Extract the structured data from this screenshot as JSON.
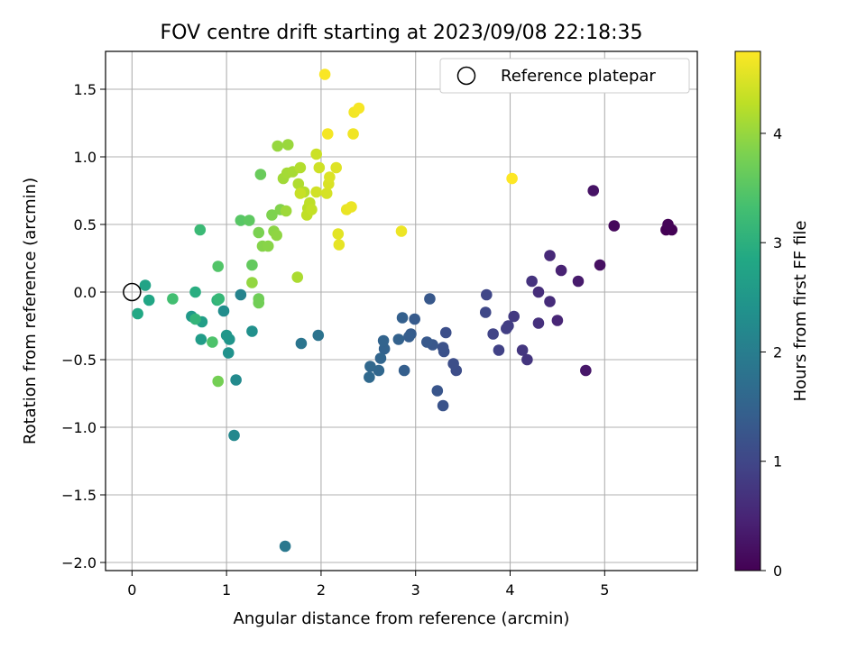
{
  "chart_data": {
    "type": "scatter",
    "title": "FOV centre drift starting at 2023/09/08 22:18:35",
    "xlabel": "Angular distance from reference (arcmin)",
    "ylabel": "Rotation from reference (arcmin)",
    "xlim": [
      -0.28,
      5.98
    ],
    "ylim": [
      -2.06,
      1.78
    ],
    "xticks": [
      "0",
      "1",
      "2",
      "3",
      "4",
      "5"
    ],
    "yticks": [
      "1.5",
      "1.0",
      "0.5",
      "0.0",
      "−0.5",
      "−1.0",
      "−1.5",
      "−2.0"
    ],
    "grid": true,
    "legend": {
      "position": "top-right",
      "label": "Reference platepar"
    },
    "reference_point": {
      "x": 0.0,
      "y": 0.0
    },
    "colorbar": {
      "label": "Hours from first FF file",
      "range": [
        0,
        4.75
      ],
      "ticks": [
        "0",
        "1",
        "2",
        "3",
        "4"
      ],
      "colormap": "viridis"
    },
    "points": [
      {
        "x": 5.65,
        "y": 0.46,
        "c": 0.0
      },
      {
        "x": 5.71,
        "y": 0.46,
        "c": 0.02
      },
      {
        "x": 5.67,
        "y": 0.5,
        "c": 0.04
      },
      {
        "x": 5.1,
        "y": 0.49,
        "c": 0.1
      },
      {
        "x": 4.95,
        "y": 0.2,
        "c": 0.2
      },
      {
        "x": 4.88,
        "y": 0.75,
        "c": 0.25
      },
      {
        "x": 4.8,
        "y": -0.58,
        "c": 0.3
      },
      {
        "x": 4.72,
        "y": 0.08,
        "c": 0.35
      },
      {
        "x": 4.54,
        "y": 0.16,
        "c": 0.45
      },
      {
        "x": 4.5,
        "y": -0.21,
        "c": 0.5
      },
      {
        "x": 4.42,
        "y": 0.27,
        "c": 0.55
      },
      {
        "x": 4.42,
        "y": -0.07,
        "c": 0.6
      },
      {
        "x": 4.3,
        "y": 0.0,
        "c": 0.62
      },
      {
        "x": 4.3,
        "y": -0.23,
        "c": 0.65
      },
      {
        "x": 4.23,
        "y": 0.08,
        "c": 0.7
      },
      {
        "x": 4.18,
        "y": -0.5,
        "c": 0.72
      },
      {
        "x": 4.13,
        "y": -0.43,
        "c": 0.75
      },
      {
        "x": 4.04,
        "y": -0.18,
        "c": 0.8
      },
      {
        "x": 3.98,
        "y": -0.25,
        "c": 0.85
      },
      {
        "x": 3.96,
        "y": -0.27,
        "c": 0.88
      },
      {
        "x": 3.88,
        "y": -0.43,
        "c": 0.92
      },
      {
        "x": 3.82,
        "y": -0.31,
        "c": 0.95
      },
      {
        "x": 3.75,
        "y": -0.02,
        "c": 1.0
      },
      {
        "x": 3.74,
        "y": -0.15,
        "c": 1.02
      },
      {
        "x": 3.43,
        "y": -0.58,
        "c": 1.1
      },
      {
        "x": 3.4,
        "y": -0.53,
        "c": 1.12
      },
      {
        "x": 3.32,
        "y": -0.3,
        "c": 1.15
      },
      {
        "x": 3.3,
        "y": -0.44,
        "c": 1.18
      },
      {
        "x": 3.29,
        "y": -0.41,
        "c": 1.2
      },
      {
        "x": 3.29,
        "y": -0.84,
        "c": 1.22
      },
      {
        "x": 3.23,
        "y": -0.73,
        "c": 1.25
      },
      {
        "x": 3.18,
        "y": -0.39,
        "c": 1.28
      },
      {
        "x": 3.15,
        "y": -0.05,
        "c": 1.3
      },
      {
        "x": 3.12,
        "y": -0.37,
        "c": 1.32
      },
      {
        "x": 2.99,
        "y": -0.2,
        "c": 1.35
      },
      {
        "x": 2.95,
        "y": -0.31,
        "c": 1.38
      },
      {
        "x": 2.93,
        "y": -0.33,
        "c": 1.4
      },
      {
        "x": 2.88,
        "y": -0.58,
        "c": 1.42
      },
      {
        "x": 2.86,
        "y": -0.19,
        "c": 1.45
      },
      {
        "x": 2.82,
        "y": -0.35,
        "c": 1.48
      },
      {
        "x": 2.67,
        "y": -0.42,
        "c": 1.5
      },
      {
        "x": 2.66,
        "y": -0.36,
        "c": 1.52
      },
      {
        "x": 2.63,
        "y": -0.49,
        "c": 1.55
      },
      {
        "x": 2.61,
        "y": -0.58,
        "c": 1.58
      },
      {
        "x": 2.52,
        "y": -0.55,
        "c": 1.6
      },
      {
        "x": 2.51,
        "y": -0.63,
        "c": 1.62
      },
      {
        "x": 1.97,
        "y": -0.32,
        "c": 1.8
      },
      {
        "x": 1.79,
        "y": -0.38,
        "c": 1.85
      },
      {
        "x": 1.62,
        "y": -1.88,
        "c": 1.9
      },
      {
        "x": 1.15,
        "y": -0.02,
        "c": 2.1
      },
      {
        "x": 1.08,
        "y": -1.06,
        "c": 2.2
      },
      {
        "x": 1.1,
        "y": -0.65,
        "c": 2.25
      },
      {
        "x": 0.97,
        "y": -0.14,
        "c": 2.3
      },
      {
        "x": 1.27,
        "y": -0.29,
        "c": 2.35
      },
      {
        "x": 1.02,
        "y": -0.45,
        "c": 2.4
      },
      {
        "x": 1.03,
        "y": -0.35,
        "c": 2.45
      },
      {
        "x": 1.0,
        "y": -0.32,
        "c": 2.48
      },
      {
        "x": 0.63,
        "y": -0.18,
        "c": 2.55
      },
      {
        "x": 0.73,
        "y": -0.35,
        "c": 2.6
      },
      {
        "x": 0.74,
        "y": -0.22,
        "c": 2.65
      },
      {
        "x": 0.14,
        "y": 0.05,
        "c": 2.75
      },
      {
        "x": 0.18,
        "y": -0.06,
        "c": 2.8
      },
      {
        "x": 0.06,
        "y": -0.16,
        "c": 2.85
      },
      {
        "x": 0.67,
        "y": 0.0,
        "c": 2.95
      },
      {
        "x": 0.9,
        "y": -0.06,
        "c": 3.05
      },
      {
        "x": 0.67,
        "y": -0.2,
        "c": 3.1
      },
      {
        "x": 0.92,
        "y": -0.05,
        "c": 3.15
      },
      {
        "x": 0.72,
        "y": 0.46,
        "c": 3.2
      },
      {
        "x": 0.43,
        "y": -0.05,
        "c": 3.3
      },
      {
        "x": 0.85,
        "y": -0.37,
        "c": 3.4
      },
      {
        "x": 0.91,
        "y": 0.19,
        "c": 3.45
      },
      {
        "x": 1.15,
        "y": 0.53,
        "c": 3.5
      },
      {
        "x": 1.24,
        "y": 0.53,
        "c": 3.55
      },
      {
        "x": 1.27,
        "y": 0.2,
        "c": 3.6
      },
      {
        "x": 1.36,
        "y": 0.87,
        "c": 3.65
      },
      {
        "x": 1.34,
        "y": -0.05,
        "c": 3.7
      },
      {
        "x": 1.34,
        "y": -0.08,
        "c": 3.72
      },
      {
        "x": 0.91,
        "y": -0.66,
        "c": 3.75
      },
      {
        "x": 1.34,
        "y": 0.44,
        "c": 3.8
      },
      {
        "x": 1.48,
        "y": 0.57,
        "c": 3.82
      },
      {
        "x": 1.57,
        "y": 0.61,
        "c": 3.85
      },
      {
        "x": 1.38,
        "y": 0.34,
        "c": 3.88
      },
      {
        "x": 1.44,
        "y": 0.34,
        "c": 3.9
      },
      {
        "x": 1.5,
        "y": 0.45,
        "c": 3.92
      },
      {
        "x": 1.53,
        "y": 0.42,
        "c": 3.95
      },
      {
        "x": 1.27,
        "y": 0.07,
        "c": 3.98
      },
      {
        "x": 1.54,
        "y": 1.08,
        "c": 4.0
      },
      {
        "x": 1.65,
        "y": 1.09,
        "c": 4.02
      },
      {
        "x": 1.63,
        "y": 0.6,
        "c": 4.05
      },
      {
        "x": 1.6,
        "y": 0.84,
        "c": 4.08
      },
      {
        "x": 1.64,
        "y": 0.88,
        "c": 4.1
      },
      {
        "x": 1.7,
        "y": 0.89,
        "c": 4.12
      },
      {
        "x": 1.75,
        "y": 0.11,
        "c": 4.15
      },
      {
        "x": 1.76,
        "y": 0.8,
        "c": 4.18
      },
      {
        "x": 1.78,
        "y": 0.92,
        "c": 4.2
      },
      {
        "x": 1.82,
        "y": 0.74,
        "c": 4.22
      },
      {
        "x": 1.86,
        "y": 0.62,
        "c": 4.25
      },
      {
        "x": 1.88,
        "y": 0.66,
        "c": 4.28
      },
      {
        "x": 1.85,
        "y": 0.57,
        "c": 4.3
      },
      {
        "x": 1.9,
        "y": 0.61,
        "c": 4.32
      },
      {
        "x": 1.78,
        "y": 0.73,
        "c": 4.35
      },
      {
        "x": 1.95,
        "y": 1.02,
        "c": 4.38
      },
      {
        "x": 1.98,
        "y": 0.92,
        "c": 4.4
      },
      {
        "x": 1.95,
        "y": 0.74,
        "c": 4.42
      },
      {
        "x": 2.06,
        "y": 0.73,
        "c": 4.45
      },
      {
        "x": 2.08,
        "y": 0.8,
        "c": 4.48
      },
      {
        "x": 2.09,
        "y": 0.85,
        "c": 4.5
      },
      {
        "x": 2.16,
        "y": 0.92,
        "c": 4.52
      },
      {
        "x": 2.18,
        "y": 0.43,
        "c": 4.55
      },
      {
        "x": 2.19,
        "y": 0.35,
        "c": 4.58
      },
      {
        "x": 2.27,
        "y": 0.61,
        "c": 4.6
      },
      {
        "x": 2.32,
        "y": 0.63,
        "c": 4.62
      },
      {
        "x": 2.85,
        "y": 0.45,
        "c": 4.63
      },
      {
        "x": 2.34,
        "y": 1.17,
        "c": 4.65
      },
      {
        "x": 2.35,
        "y": 1.33,
        "c": 4.67
      },
      {
        "x": 2.07,
        "y": 1.17,
        "c": 4.68
      },
      {
        "x": 2.4,
        "y": 1.36,
        "c": 4.7
      },
      {
        "x": 2.04,
        "y": 1.61,
        "c": 4.72
      },
      {
        "x": 4.02,
        "y": 0.84,
        "c": 4.75
      }
    ]
  }
}
